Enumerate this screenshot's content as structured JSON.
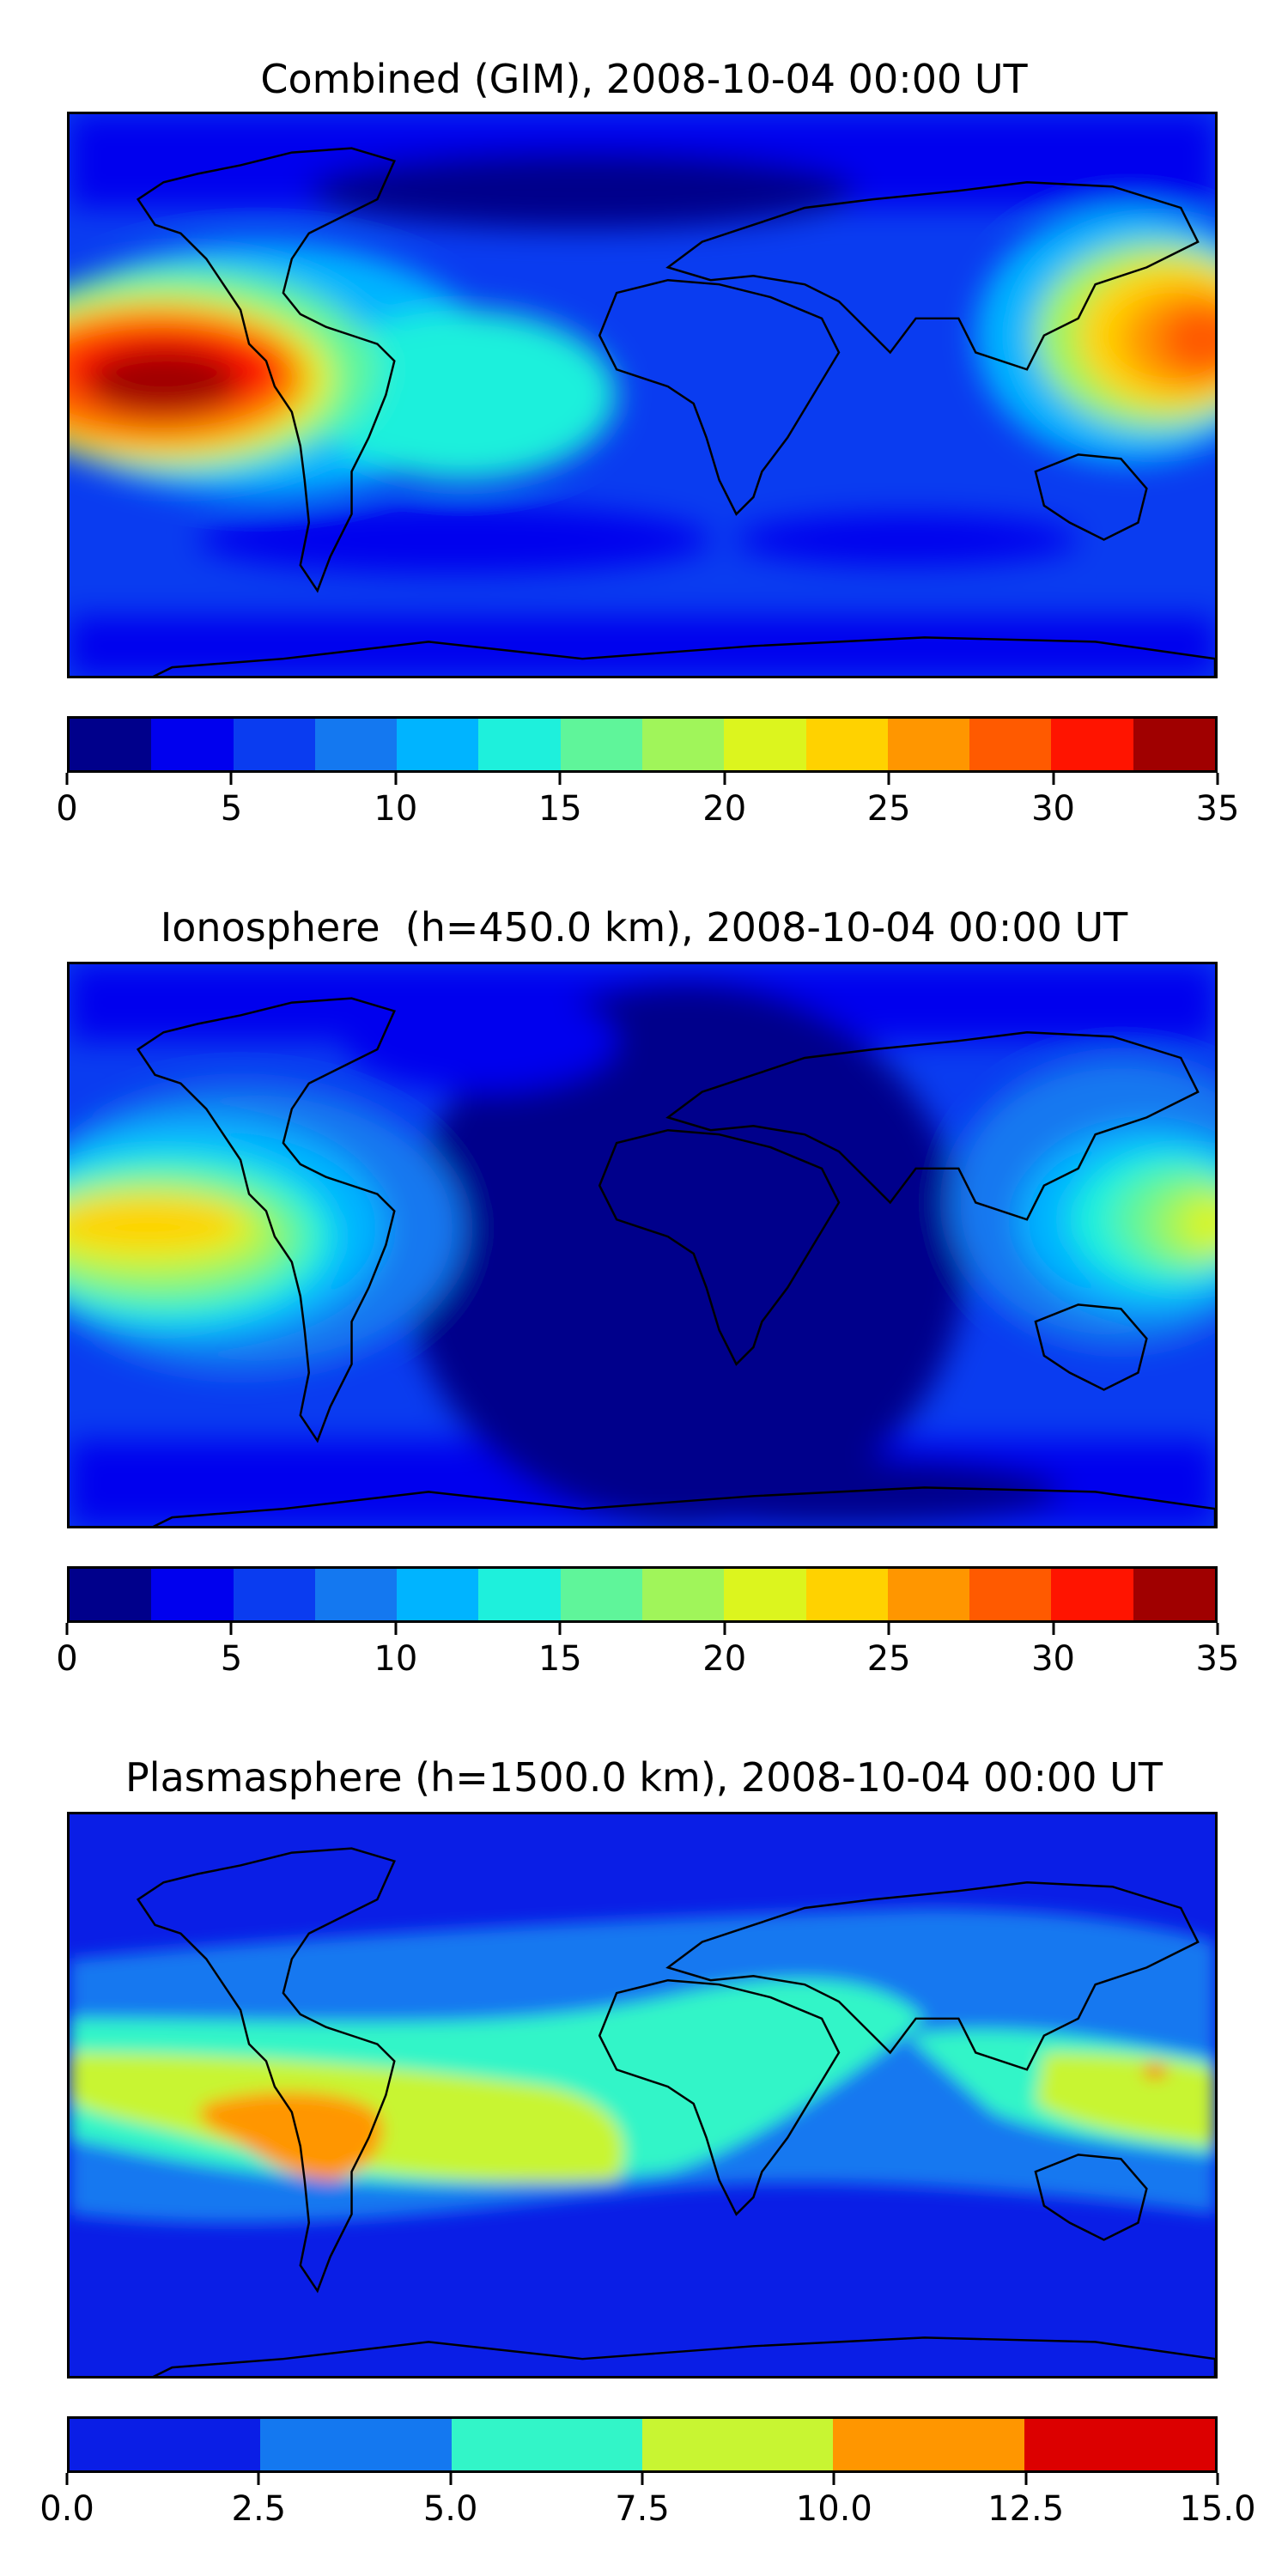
{
  "panels": [
    {
      "title": "Combined (GIM), 2008-10-04 00:00 UT",
      "colorbar": {
        "colors": [
          "#00008b",
          "#0000ee",
          "#0a3cf0",
          "#1478f0",
          "#00b4ff",
          "#1ef0dc",
          "#5ff59a",
          "#a0f55a",
          "#dcf51e",
          "#ffd200",
          "#ff9600",
          "#ff5a00",
          "#ff1400",
          "#a00000"
        ],
        "ticks": [
          "0",
          "5",
          "10",
          "15",
          "20",
          "25",
          "30",
          "35"
        ]
      },
      "chart_data": {
        "type": "heatmap",
        "title": "Combined (GIM), 2008-10-04 00:00 UT",
        "zlim": [
          0,
          35
        ],
        "levels": [
          0,
          2.5,
          5,
          7.5,
          10,
          12.5,
          15,
          17.5,
          20,
          22.5,
          25,
          27.5,
          30,
          32.5,
          35
        ],
        "xlim": [
          -180,
          180
        ],
        "ylim": [
          -90,
          90
        ],
        "features": [
          {
            "lon": -160,
            "lat": 3,
            "value": 34
          },
          {
            "lon": 175,
            "lat": 5,
            "value": 27
          },
          {
            "lon": -60,
            "lat": -10,
            "value": 15
          },
          {
            "lon": 0,
            "lat": -65,
            "value": 3
          }
        ]
      }
    },
    {
      "title": "Ionosphere  (h=450.0 km), 2008-10-04 00:00 UT",
      "colorbar": {
        "colors": [
          "#00008b",
          "#0000ee",
          "#0a3cf0",
          "#1478f0",
          "#00b4ff",
          "#1ef0dc",
          "#5ff59a",
          "#a0f55a",
          "#dcf51e",
          "#ffd200",
          "#ff9600",
          "#ff5a00",
          "#ff1400",
          "#a00000"
        ],
        "ticks": [
          "0",
          "5",
          "10",
          "15",
          "20",
          "25",
          "30",
          "35"
        ]
      },
      "chart_data": {
        "type": "heatmap",
        "title": "Ionosphere  (h=450.0 km), 2008-10-04 00:00 UT",
        "zlim": [
          0,
          35
        ],
        "levels": [
          0,
          2.5,
          5,
          7.5,
          10,
          12.5,
          15,
          17.5,
          20,
          22.5,
          25,
          27.5,
          30,
          32.5,
          35
        ],
        "xlim": [
          -180,
          180
        ],
        "ylim": [
          -90,
          90
        ],
        "features": [
          {
            "lon": -165,
            "lat": 5,
            "value": 24
          },
          {
            "lon": 175,
            "lat": 5,
            "value": 20
          },
          {
            "lon": 10,
            "lat": 0,
            "value": 1
          },
          {
            "lon": 0,
            "lat": -65,
            "value": 2
          }
        ]
      }
    },
    {
      "title": "Plasmasphere (h=1500.0 km), 2008-10-04 00:00 UT",
      "colorbar": {
        "colors": [
          "#0a1ee6",
          "#1478f0",
          "#32f5c8",
          "#c8f532",
          "#ff9600",
          "#dc0000"
        ],
        "ticks": [
          "0.0",
          "2.5",
          "5.0",
          "7.5",
          "10.0",
          "12.5",
          "15.0"
        ]
      },
      "chart_data": {
        "type": "heatmap",
        "title": "Plasmasphere (h=1500.0 km), 2008-10-04 00:00 UT",
        "zlim": [
          0,
          15
        ],
        "levels": [
          0,
          2.5,
          5,
          7.5,
          10,
          12.5,
          15
        ],
        "xlim": [
          -180,
          180
        ],
        "ylim": [
          -90,
          90
        ],
        "features": [
          {
            "lon": -125,
            "lat": -10,
            "value": 11
          },
          {
            "lon": 140,
            "lat": 0,
            "value": 9
          },
          {
            "lon": 0,
            "lat": 5,
            "value": 6
          },
          {
            "lon": 0,
            "lat": -70,
            "value": 1.5
          }
        ]
      }
    }
  ]
}
